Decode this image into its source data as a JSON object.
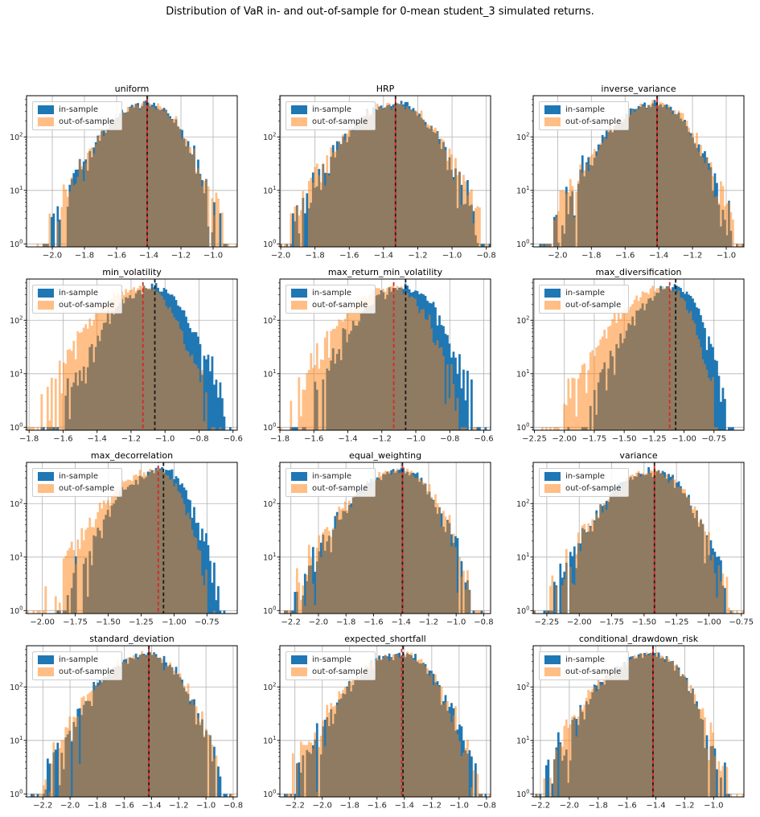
{
  "figure": {
    "title": "Distribution of VaR in- and out-of-sample for 0-mean student_3 simulated returns."
  },
  "legend": {
    "in_label": "in-sample",
    "out_label": "out-of-sample"
  },
  "colors": {
    "in_sample": "#1f77b4",
    "out_sample": "#ff7f0e",
    "out_sample_legend": "#ffbe86",
    "mean_line_red": "#d62728",
    "mean_line_black": "#1a1a1a",
    "grid": "#b2b2b2",
    "spine": "#000000",
    "tick_text": "#262626"
  },
  "y_axis": {
    "scale": "log",
    "ticks": [
      {
        "base": "10",
        "exp": "0"
      },
      {
        "base": "10",
        "exp": "1"
      },
      {
        "base": "10",
        "exp": "2"
      }
    ],
    "ylim": [
      0.88,
      590
    ]
  },
  "chart_data": [
    {
      "type": "histogram",
      "title": "uniform",
      "xlim": [
        -2.16,
        -0.85
      ],
      "xticks": [
        -2.0,
        -1.8,
        -1.6,
        -1.4,
        -1.2,
        -1.0
      ],
      "xtick_labels": [
        "−2.0",
        "−1.8",
        "−1.6",
        "−1.4",
        "−1.2",
        "−1.0"
      ],
      "vline_red": -1.41,
      "vline_black": -1.41,
      "series": {
        "in_sample": {
          "mean": -1.41,
          "sigma_left": 0.174,
          "sigma_right": 0.136,
          "peak_count": 420
        },
        "out_of_sample": {
          "mean": -1.41,
          "sigma_left": 0.18,
          "sigma_right": 0.14,
          "peak_count": 415
        }
      }
    },
    {
      "type": "histogram",
      "title": "HRP",
      "xlim": [
        -2.005,
        -0.775
      ],
      "xticks": [
        -2.0,
        -1.8,
        -1.6,
        -1.4,
        -1.2,
        -1.0,
        -0.8
      ],
      "xtick_labels": [
        "−2.0",
        "−1.8",
        "−1.6",
        "−1.4",
        "−1.2",
        "−1.0",
        "−0.8"
      ],
      "vline_red": -1.33,
      "vline_black": -1.33,
      "series": {
        "in_sample": {
          "mean": -1.33,
          "sigma_left": 0.177,
          "sigma_right": 0.144,
          "peak_count": 420
        },
        "out_of_sample": {
          "mean": -1.33,
          "sigma_left": 0.182,
          "sigma_right": 0.148,
          "peak_count": 412
        }
      }
    },
    {
      "type": "histogram",
      "title": "inverse_variance",
      "xlim": [
        -2.145,
        -0.895
      ],
      "xticks": [
        -2.0,
        -1.8,
        -1.6,
        -1.4,
        -1.2,
        -1.0
      ],
      "xtick_labels": [
        "−2.0",
        "−1.8",
        "−1.6",
        "−1.4",
        "−1.2",
        "−1.0"
      ],
      "vline_red": -1.41,
      "vline_black": -1.41,
      "series": {
        "in_sample": {
          "mean": -1.41,
          "sigma_left": 0.18,
          "sigma_right": 0.13,
          "peak_count": 420
        },
        "out_of_sample": {
          "mean": -1.41,
          "sigma_left": 0.185,
          "sigma_right": 0.135,
          "peak_count": 418
        }
      }
    },
    {
      "type": "histogram",
      "title": "min_volatility",
      "xlim": [
        -1.815,
        -0.575
      ],
      "xticks": [
        -1.8,
        -1.6,
        -1.4,
        -1.2,
        -1.0,
        -0.8,
        -0.6
      ],
      "xtick_labels": [
        "−1.8",
        "−1.6",
        "−1.4",
        "−1.2",
        "−1.0",
        "−0.8",
        "−0.6"
      ],
      "vline_red": -1.13,
      "vline_black": -1.06,
      "series": {
        "in_sample": {
          "mean": -1.06,
          "sigma_left": 0.166,
          "sigma_right": 0.12,
          "peak_count": 420
        },
        "out_of_sample": {
          "mean": -1.13,
          "sigma_left": 0.18,
          "sigma_right": 0.117,
          "peak_count": 415
        }
      }
    },
    {
      "type": "histogram",
      "title": "max_return_min_volatility",
      "xlim": [
        -1.8,
        -0.56
      ],
      "xticks": [
        -1.8,
        -1.6,
        -1.4,
        -1.2,
        -1.0,
        -0.8,
        -0.6
      ],
      "xtick_labels": [
        "−1.8",
        "−1.6",
        "−1.4",
        "−1.2",
        "−1.0",
        "−0.8",
        "−0.6"
      ],
      "vline_red": -1.13,
      "vline_black": -1.06,
      "series": {
        "in_sample": {
          "mean": -1.06,
          "sigma_left": 0.17,
          "sigma_right": 0.122,
          "peak_count": 420
        },
        "out_of_sample": {
          "mean": -1.13,
          "sigma_left": 0.185,
          "sigma_right": 0.115,
          "peak_count": 412
        }
      }
    },
    {
      "type": "histogram",
      "title": "max_diversification",
      "xlim": [
        -2.26,
        -0.5
      ],
      "xticks": [
        -2.25,
        -2.0,
        -1.75,
        -1.5,
        -1.25,
        -1.0,
        -0.75
      ],
      "xtick_labels": [
        "−2.25",
        "−2.00",
        "−1.75",
        "−1.50",
        "−1.25",
        "−1.00",
        "−0.75"
      ],
      "vline_red": -1.12,
      "vline_black": -1.07,
      "series": {
        "in_sample": {
          "mean": -1.07,
          "sigma_left": 0.215,
          "sigma_right": 0.128,
          "peak_count": 430
        },
        "out_of_sample": {
          "mean": -1.12,
          "sigma_left": 0.27,
          "sigma_right": 0.11,
          "peak_count": 425
        }
      }
    },
    {
      "type": "histogram",
      "title": "max_decorrelation",
      "xlim": [
        -2.12,
        -0.52
      ],
      "xticks": [
        -2.0,
        -1.75,
        -1.5,
        -1.25,
        -1.0,
        -0.75
      ],
      "xtick_labels": [
        "−2.00",
        "−1.75",
        "−1.50",
        "−1.25",
        "−1.00",
        "−0.75"
      ],
      "vline_red": -1.12,
      "vline_black": -1.08,
      "series": {
        "in_sample": {
          "mean": -1.08,
          "sigma_left": 0.215,
          "sigma_right": 0.123,
          "peak_count": 425
        },
        "out_of_sample": {
          "mean": -1.12,
          "sigma_left": 0.25,
          "sigma_right": 0.114,
          "peak_count": 420
        }
      }
    },
    {
      "type": "histogram",
      "title": "equal_weighting",
      "xlim": [
        -2.28,
        -0.75
      ],
      "xticks": [
        -2.2,
        -2.0,
        -1.8,
        -1.6,
        -1.4,
        -1.2,
        -1.0,
        -0.8
      ],
      "xtick_labels": [
        "−2.2",
        "−2.0",
        "−1.8",
        "−1.6",
        "−1.4",
        "−1.2",
        "−1.0",
        "−0.8"
      ],
      "vline_red": -1.39,
      "vline_black": -1.39,
      "series": {
        "in_sample": {
          "mean": -1.39,
          "sigma_left": 0.23,
          "sigma_right": 0.147,
          "peak_count": 420
        },
        "out_of_sample": {
          "mean": -1.39,
          "sigma_left": 0.235,
          "sigma_right": 0.15,
          "peak_count": 412
        }
      }
    },
    {
      "type": "histogram",
      "title": "variance",
      "xlim": [
        -2.355,
        -0.73
      ],
      "xticks": [
        -2.25,
        -2.0,
        -1.75,
        -1.5,
        -1.25,
        -1.0,
        -0.75
      ],
      "xtick_labels": [
        "−2.25",
        "−2.00",
        "−1.75",
        "−1.50",
        "−1.25",
        "−1.00",
        "−0.75"
      ],
      "vline_red": -1.42,
      "vline_black": -1.42,
      "series": {
        "in_sample": {
          "mean": -1.42,
          "sigma_left": 0.23,
          "sigma_right": 0.165,
          "peak_count": 420
        },
        "out_of_sample": {
          "mean": -1.42,
          "sigma_left": 0.235,
          "sigma_right": 0.17,
          "peak_count": 415
        }
      }
    },
    {
      "type": "histogram",
      "title": "standard_deviation",
      "xlim": [
        -2.32,
        -0.77
      ],
      "xticks": [
        -2.2,
        -2.0,
        -1.8,
        -1.6,
        -1.4,
        -1.2,
        -1.0,
        -0.8
      ],
      "xtick_labels": [
        "−2.2",
        "−2.0",
        "−1.8",
        "−1.6",
        "−1.4",
        "−1.2",
        "−1.0",
        "−0.8"
      ],
      "vline_red": -1.42,
      "vline_black": -1.42,
      "series": {
        "in_sample": {
          "mean": -1.42,
          "sigma_left": 0.225,
          "sigma_right": 0.155,
          "peak_count": 420
        },
        "out_of_sample": {
          "mean": -1.42,
          "sigma_left": 0.23,
          "sigma_right": 0.158,
          "peak_count": 415
        }
      }
    },
    {
      "type": "histogram",
      "title": "expected_shortfall",
      "xlim": [
        -2.31,
        -0.77
      ],
      "xticks": [
        -2.2,
        -2.0,
        -1.8,
        -1.6,
        -1.4,
        -1.2,
        -1.0,
        -0.8
      ],
      "xtick_labels": [
        "−2.2",
        "−2.0",
        "−1.8",
        "−1.6",
        "−1.4",
        "−1.2",
        "−1.0",
        "−0.8"
      ],
      "vline_red": -1.42,
      "vline_black": -1.41,
      "series": {
        "in_sample": {
          "mean": -1.41,
          "sigma_left": 0.23,
          "sigma_right": 0.162,
          "peak_count": 420
        },
        "out_of_sample": {
          "mean": -1.42,
          "sigma_left": 0.235,
          "sigma_right": 0.165,
          "peak_count": 415
        }
      }
    },
    {
      "type": "histogram",
      "title": "conditional_drawdown_risk",
      "xlim": [
        -2.25,
        -0.79
      ],
      "xticks": [
        -2.2,
        -2.0,
        -1.8,
        -1.6,
        -1.4,
        -1.2,
        -1.0
      ],
      "xtick_labels": [
        "−2.2",
        "−2.0",
        "−1.8",
        "−1.6",
        "−1.4",
        "−1.2",
        "−1.0"
      ],
      "vline_red": -1.42,
      "vline_black": -1.42,
      "series": {
        "in_sample": {
          "mean": -1.42,
          "sigma_left": 0.225,
          "sigma_right": 0.148,
          "peak_count": 420
        },
        "out_of_sample": {
          "mean": -1.42,
          "sigma_left": 0.23,
          "sigma_right": 0.15,
          "peak_count": 415
        }
      }
    }
  ]
}
